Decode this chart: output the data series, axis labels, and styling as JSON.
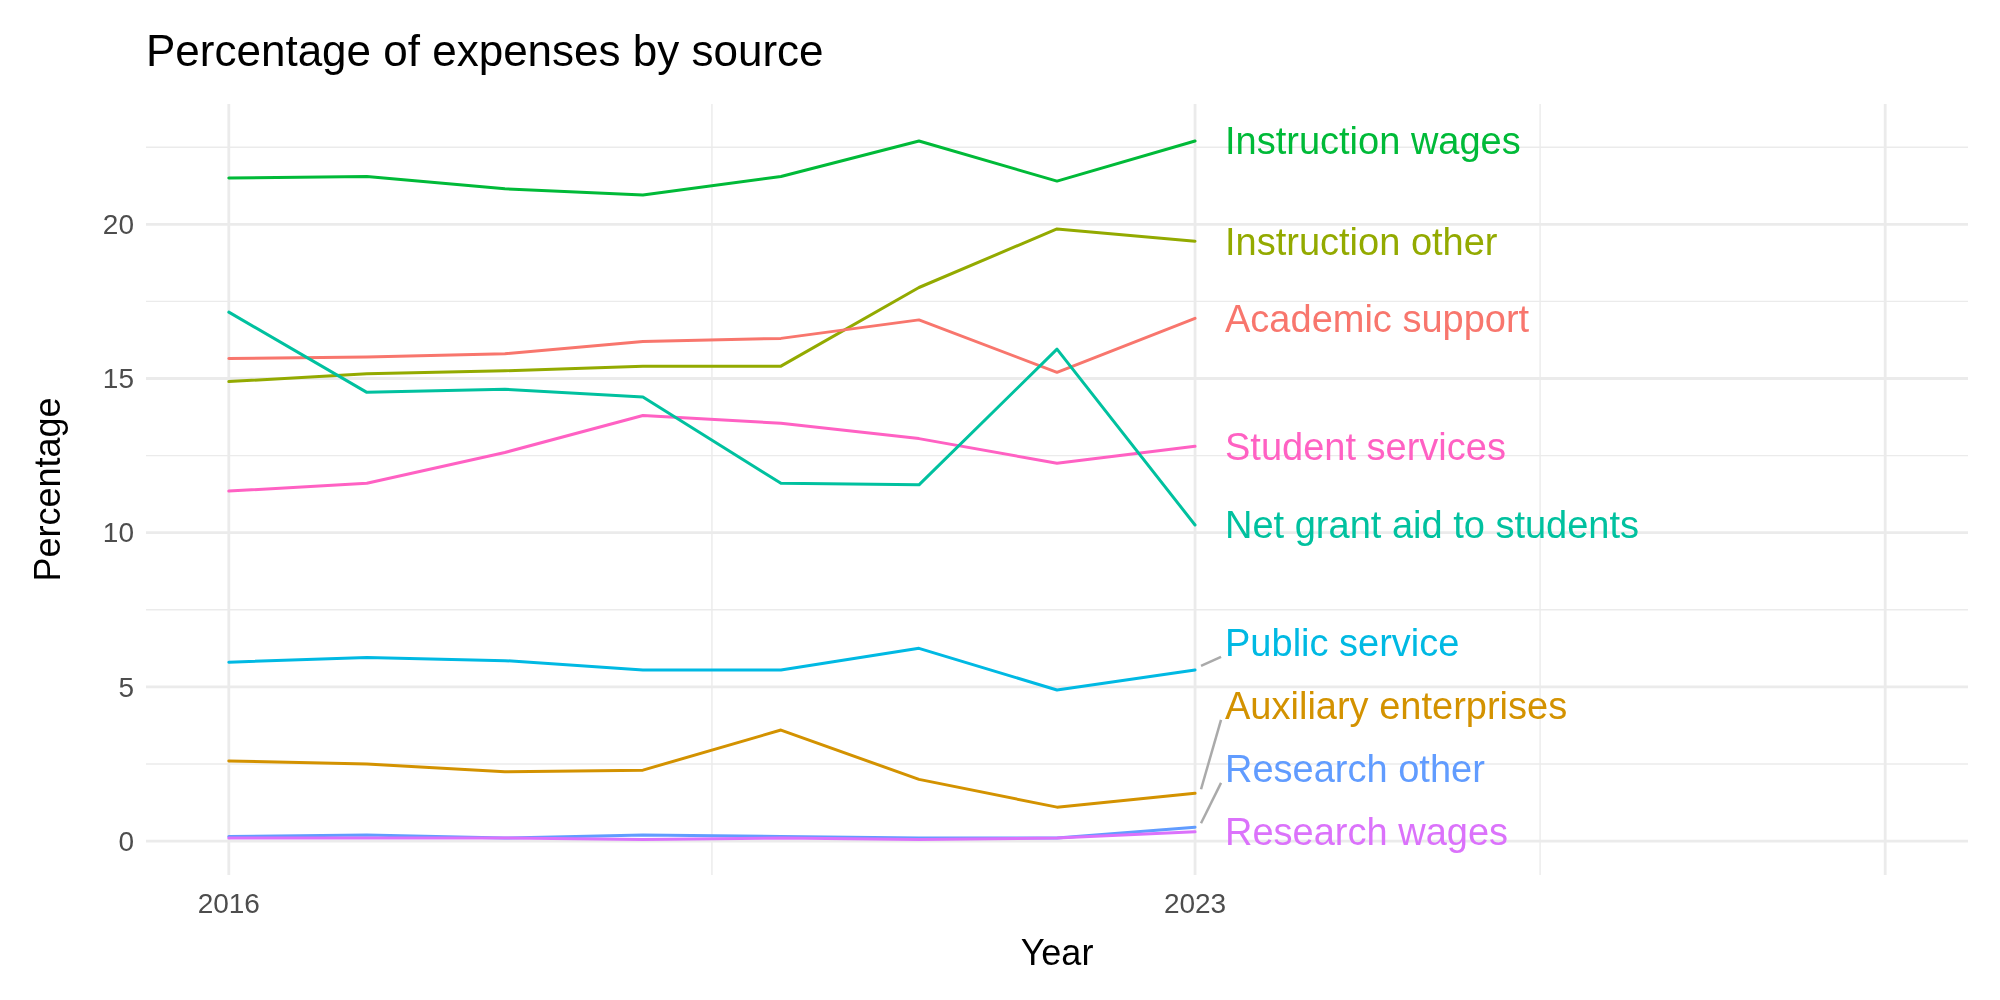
{
  "chart_data": {
    "type": "line",
    "title": "Percentage of expenses by source",
    "xlabel": "Year",
    "ylabel": "Percentage",
    "x": [
      2016,
      2017,
      2018,
      2019,
      2020,
      2021,
      2022,
      2023
    ],
    "xlim": [
      2015.4,
      2028.6
    ],
    "xticks": [
      2016,
      2023,
      {
        "value": 2028,
        "label": null
      }
    ],
    "ylim": [
      -1.1,
      23.9
    ],
    "yticks": [
      0,
      5,
      10,
      15,
      20
    ],
    "grid": true,
    "series": [
      {
        "name": "Instruction wages",
        "color": "#00ba38",
        "values": [
          21.5,
          21.55,
          21.15,
          20.95,
          21.55,
          22.7,
          21.4,
          22.7
        ]
      },
      {
        "name": "Instruction other",
        "color": "#93aa00",
        "values": [
          14.9,
          15.15,
          15.25,
          15.4,
          15.4,
          17.95,
          19.85,
          19.45
        ]
      },
      {
        "name": "Academic support",
        "color": "#f8766d",
        "values": [
          15.65,
          15.7,
          15.8,
          16.2,
          16.3,
          16.9,
          15.2,
          16.95
        ]
      },
      {
        "name": "Student services",
        "color": "#ff61c3",
        "values": [
          11.35,
          11.6,
          12.6,
          13.8,
          13.55,
          13.05,
          12.25,
          12.8
        ]
      },
      {
        "name": "Net grant aid to students",
        "color": "#00c19f",
        "values": [
          17.15,
          14.55,
          14.65,
          14.4,
          11.6,
          11.55,
          15.95,
          10.25
        ]
      },
      {
        "name": "Public service",
        "color": "#00b9e3",
        "values": [
          5.8,
          5.95,
          5.85,
          5.55,
          5.55,
          6.25,
          4.9,
          5.55
        ]
      },
      {
        "name": "Auxiliary enterprises",
        "color": "#d39200",
        "values": [
          2.6,
          2.5,
          2.25,
          2.3,
          3.6,
          2.0,
          1.1,
          1.55
        ]
      },
      {
        "name": "Research other",
        "color": "#619cff",
        "values": [
          0.15,
          0.2,
          0.1,
          0.2,
          0.15,
          0.1,
          0.1,
          0.45
        ]
      },
      {
        "name": "Research wages",
        "color": "#db72fb",
        "values": [
          0.1,
          0.1,
          0.1,
          0.05,
          0.1,
          0.05,
          0.1,
          0.3
        ]
      }
    ]
  }
}
